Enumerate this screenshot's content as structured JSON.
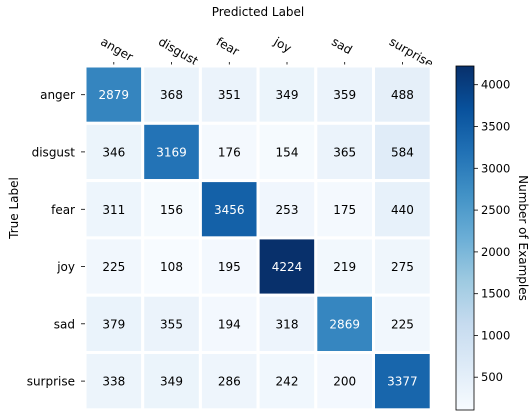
{
  "chart_data": {
    "type": "heatmap",
    "title": "Predicted Label",
    "xlabel": "Predicted Label",
    "ylabel": "True Label",
    "x_categories": [
      "anger",
      "disgust",
      "fear",
      "joy",
      "sad",
      "surprise"
    ],
    "y_categories": [
      "anger",
      "disgust",
      "fear",
      "joy",
      "sad",
      "surprise"
    ],
    "values": [
      [
        2879,
        368,
        351,
        349,
        359,
        488
      ],
      [
        346,
        3169,
        176,
        154,
        365,
        584
      ],
      [
        311,
        156,
        3456,
        253,
        175,
        440
      ],
      [
        225,
        108,
        195,
        4224,
        219,
        275
      ],
      [
        379,
        355,
        194,
        318,
        2869,
        225
      ],
      [
        338,
        349,
        286,
        242,
        200,
        3377
      ]
    ],
    "colorbar": {
      "label": "Number of Examples",
      "ticks": [
        500,
        1000,
        1500,
        2000,
        2500,
        3000,
        3500,
        4000
      ],
      "range": [
        108,
        4224
      ],
      "colormap": "Blues"
    }
  }
}
